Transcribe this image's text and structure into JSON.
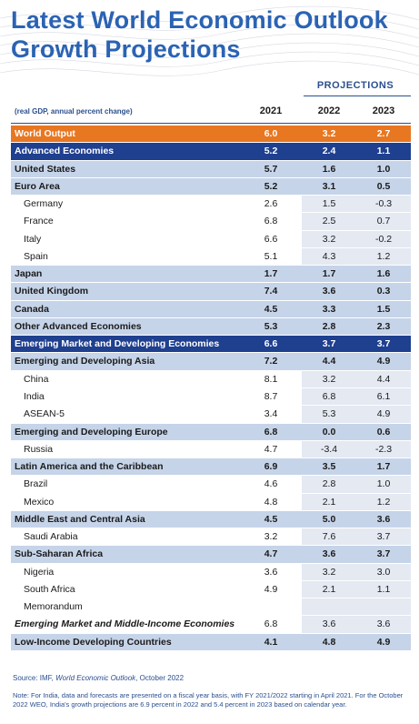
{
  "header": {
    "title": "Latest World Economic Outlook Growth Projections",
    "projections": "PROJECTIONS",
    "units": "(real GDP, annual percent change)",
    "columns": [
      "2021",
      "2022",
      "2023"
    ]
  },
  "table": {
    "rows": [
      [
        "World Output",
        "6.0",
        "3.2",
        "2.7"
      ],
      [
        "Advanced Economies",
        "5.2",
        "2.4",
        "1.1"
      ],
      [
        "United States",
        "5.7",
        "1.6",
        "1.0"
      ],
      [
        "Euro Area",
        "5.2",
        "3.1",
        "0.5"
      ],
      [
        "Germany",
        "2.6",
        "1.5",
        "-0.3"
      ],
      [
        "France",
        "6.8",
        "2.5",
        "0.7"
      ],
      [
        "Italy",
        "6.6",
        "3.2",
        "-0.2"
      ],
      [
        "Spain",
        "5.1",
        "4.3",
        "1.2"
      ],
      [
        "Japan",
        "1.7",
        "1.7",
        "1.6"
      ],
      [
        "United Kingdom",
        "7.4",
        "3.6",
        "0.3"
      ],
      [
        "Canada",
        "4.5",
        "3.3",
        "1.5"
      ],
      [
        "Other Advanced Economies",
        "5.3",
        "2.8",
        "2.3"
      ],
      [
        "Emerging Market and Developing Economies",
        "6.6",
        "3.7",
        "3.7"
      ],
      [
        "Emerging and Developing Asia",
        "7.2",
        "4.4",
        "4.9"
      ],
      [
        "China",
        "8.1",
        "3.2",
        "4.4"
      ],
      [
        "India",
        "8.7",
        "6.8",
        "6.1"
      ],
      [
        "ASEAN-5",
        "3.4",
        "5.3",
        "4.9"
      ],
      [
        "Emerging and Developing Europe",
        "6.8",
        "0.0",
        "0.6"
      ],
      [
        "Russia",
        "4.7",
        "-3.4",
        "-2.3"
      ],
      [
        "Latin America and the Caribbean",
        "6.9",
        "3.5",
        "1.7"
      ],
      [
        "Brazil",
        "4.6",
        "2.8",
        "1.0"
      ],
      [
        "Mexico",
        "4.8",
        "2.1",
        "1.2"
      ],
      [
        "Middle East and Central Asia",
        "4.5",
        "5.0",
        "3.6"
      ],
      [
        "Saudi Arabia",
        "3.2",
        "7.6",
        "3.7"
      ],
      [
        "Sub-Saharan Africa",
        "4.7",
        "3.6",
        "3.7"
      ],
      [
        "Nigeria",
        "3.6",
        "3.2",
        "3.0"
      ],
      [
        "South Africa",
        "4.9",
        "2.1",
        "1.1"
      ],
      [
        "Memorandum"
      ],
      [
        "Emerging Market and Middle-Income Economies",
        "6.8",
        "3.6",
        "3.6"
      ],
      [
        "Low-Income Developing Countries",
        "4.1",
        "4.8",
        "4.9"
      ]
    ]
  },
  "footer": {
    "source_prefix": "Source: IMF, ",
    "source_title": "World Economic Outlook",
    "source_suffix": ", October 2022",
    "note": "Note: For India, data and forecasts are presented on a fiscal year basis, with FY 2021/2022 starting in April 2021. For the October 2022 WEO, India's growth projections are 6.9 percent in 2022 and 5.4 percent in 2023 based on calendar year."
  }
}
